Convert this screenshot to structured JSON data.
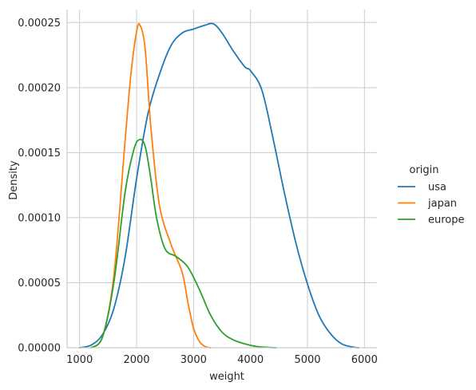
{
  "chart_data": {
    "type": "line",
    "plot_kind": "kde",
    "xlabel": "weight",
    "ylabel": "Density",
    "xlim": [
      780,
      6220
    ],
    "ylim": [
      0,
      0.00026
    ],
    "x_ticks": [
      1000,
      2000,
      3000,
      4000,
      5000,
      6000
    ],
    "x_tick_labels": [
      "1000",
      "2000",
      "3000",
      "4000",
      "5000",
      "6000"
    ],
    "y_ticks": [
      0,
      5e-05,
      0.0001,
      0.00015,
      0.0002,
      0.00025
    ],
    "y_tick_labels": [
      "0.00000",
      "0.00005",
      "0.00010",
      "0.00015",
      "0.00020",
      "0.00025"
    ],
    "grid": true,
    "legend": {
      "title": "origin",
      "placement": "right"
    },
    "series": [
      {
        "name": "usa",
        "color": "#1f77b4",
        "x": [
          1000,
          1200,
          1400,
          1600,
          1800,
          2000,
          2200,
          2400,
          2600,
          2800,
          3000,
          3200,
          3350,
          3500,
          3700,
          3900,
          4000,
          4200,
          4400,
          4600,
          4800,
          5000,
          5200,
          5400,
          5600,
          5800,
          5900
        ],
        "y": [
          0.0,
          2e-06,
          1e-05,
          3e-05,
          7e-05,
          0.00013,
          0.00018,
          0.00021,
          0.000232,
          0.000242,
          0.000245,
          0.000248,
          0.000249,
          0.000242,
          0.000228,
          0.000216,
          0.000213,
          0.000198,
          0.00016,
          0.000118,
          8e-05,
          4.9e-05,
          2.5e-05,
          1.1e-05,
          3e-06,
          5e-07,
          0.0
        ]
      },
      {
        "name": "japan",
        "color": "#ff7f0e",
        "x": [
          1200,
          1400,
          1600,
          1800,
          1900,
          2000,
          2060,
          2150,
          2250,
          2400,
          2600,
          2800,
          2900,
          3000,
          3100,
          3200,
          3300
        ],
        "y": [
          0.0,
          8e-06,
          5.5e-05,
          0.00016,
          0.00021,
          0.000243,
          0.000248,
          0.00023,
          0.00017,
          0.00011,
          8e-05,
          5.8e-05,
          3.5e-05,
          1.5e-05,
          5e-06,
          1e-06,
          0.0
        ]
      },
      {
        "name": "europe",
        "color": "#2ca02c",
        "x": [
          1200,
          1400,
          1600,
          1800,
          1950,
          2050,
          2150,
          2250,
          2350,
          2500,
          2700,
          2900,
          3100,
          3300,
          3500,
          3700,
          3900,
          4100,
          4300,
          4450
        ],
        "y": [
          0.0,
          8e-06,
          5e-05,
          0.00012,
          0.000152,
          0.00016,
          0.000155,
          0.00013,
          0.0001,
          7.6e-05,
          7e-05,
          6.2e-05,
          4.5e-05,
          2.5e-05,
          1.2e-05,
          6e-06,
          3e-06,
          1e-06,
          3e-07,
          0.0
        ]
      }
    ]
  }
}
